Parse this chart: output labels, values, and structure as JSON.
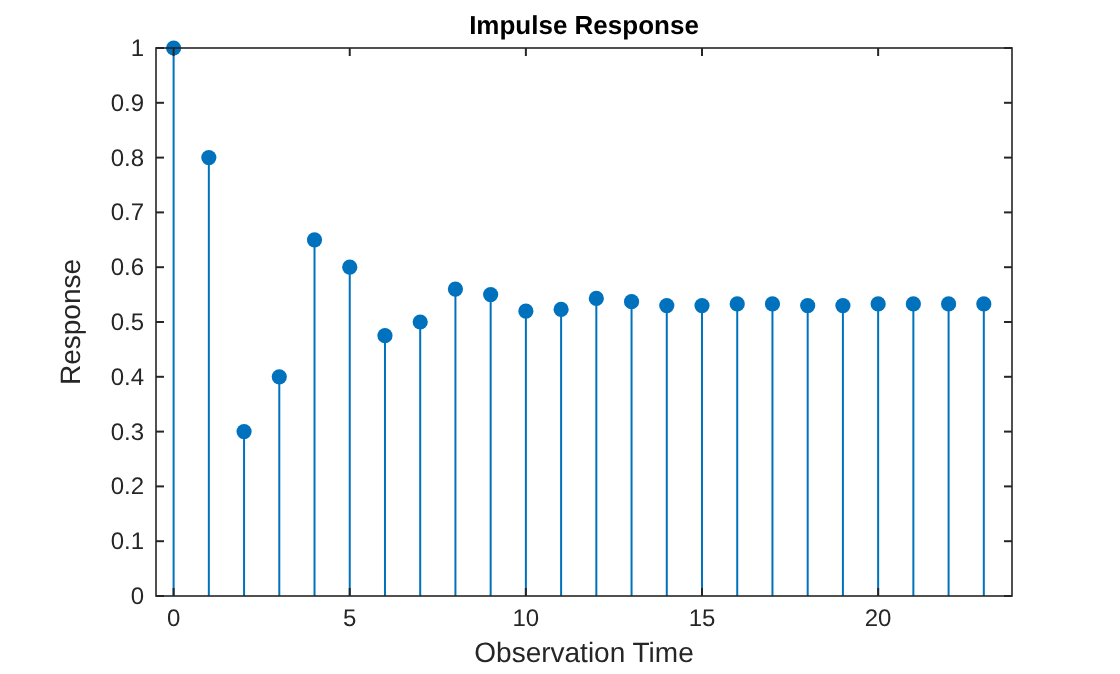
{
  "chart_data": {
    "type": "lollipop",
    "title": "Impulse Response",
    "xlabel": "Observation Time",
    "ylabel": "Response",
    "x": [
      0,
      1,
      2,
      3,
      4,
      5,
      6,
      7,
      8,
      9,
      10,
      11,
      12,
      13,
      14,
      15,
      16,
      17,
      18,
      19,
      20,
      21,
      22,
      23
    ],
    "values": [
      1,
      0.8,
      0.3,
      0.4,
      0.65,
      0.6,
      0.475,
      0.5,
      0.56,
      0.55,
      0.52,
      0.523,
      0.543,
      0.537,
      0.53,
      0.53,
      0.533,
      0.533,
      0.53,
      0.53,
      0.533,
      0.533,
      0.533,
      0.533
    ],
    "color": "#0072bd",
    "marker": "circle",
    "xlim": [
      -0.5,
      23.8
    ],
    "ylim": [
      0,
      1
    ],
    "xticks": [
      0,
      5,
      10,
      15,
      20
    ],
    "yticks": [
      0,
      0.1,
      0.2,
      0.3,
      0.4,
      0.5,
      0.6,
      0.7,
      0.8,
      0.9,
      1
    ],
    "grid": false
  }
}
